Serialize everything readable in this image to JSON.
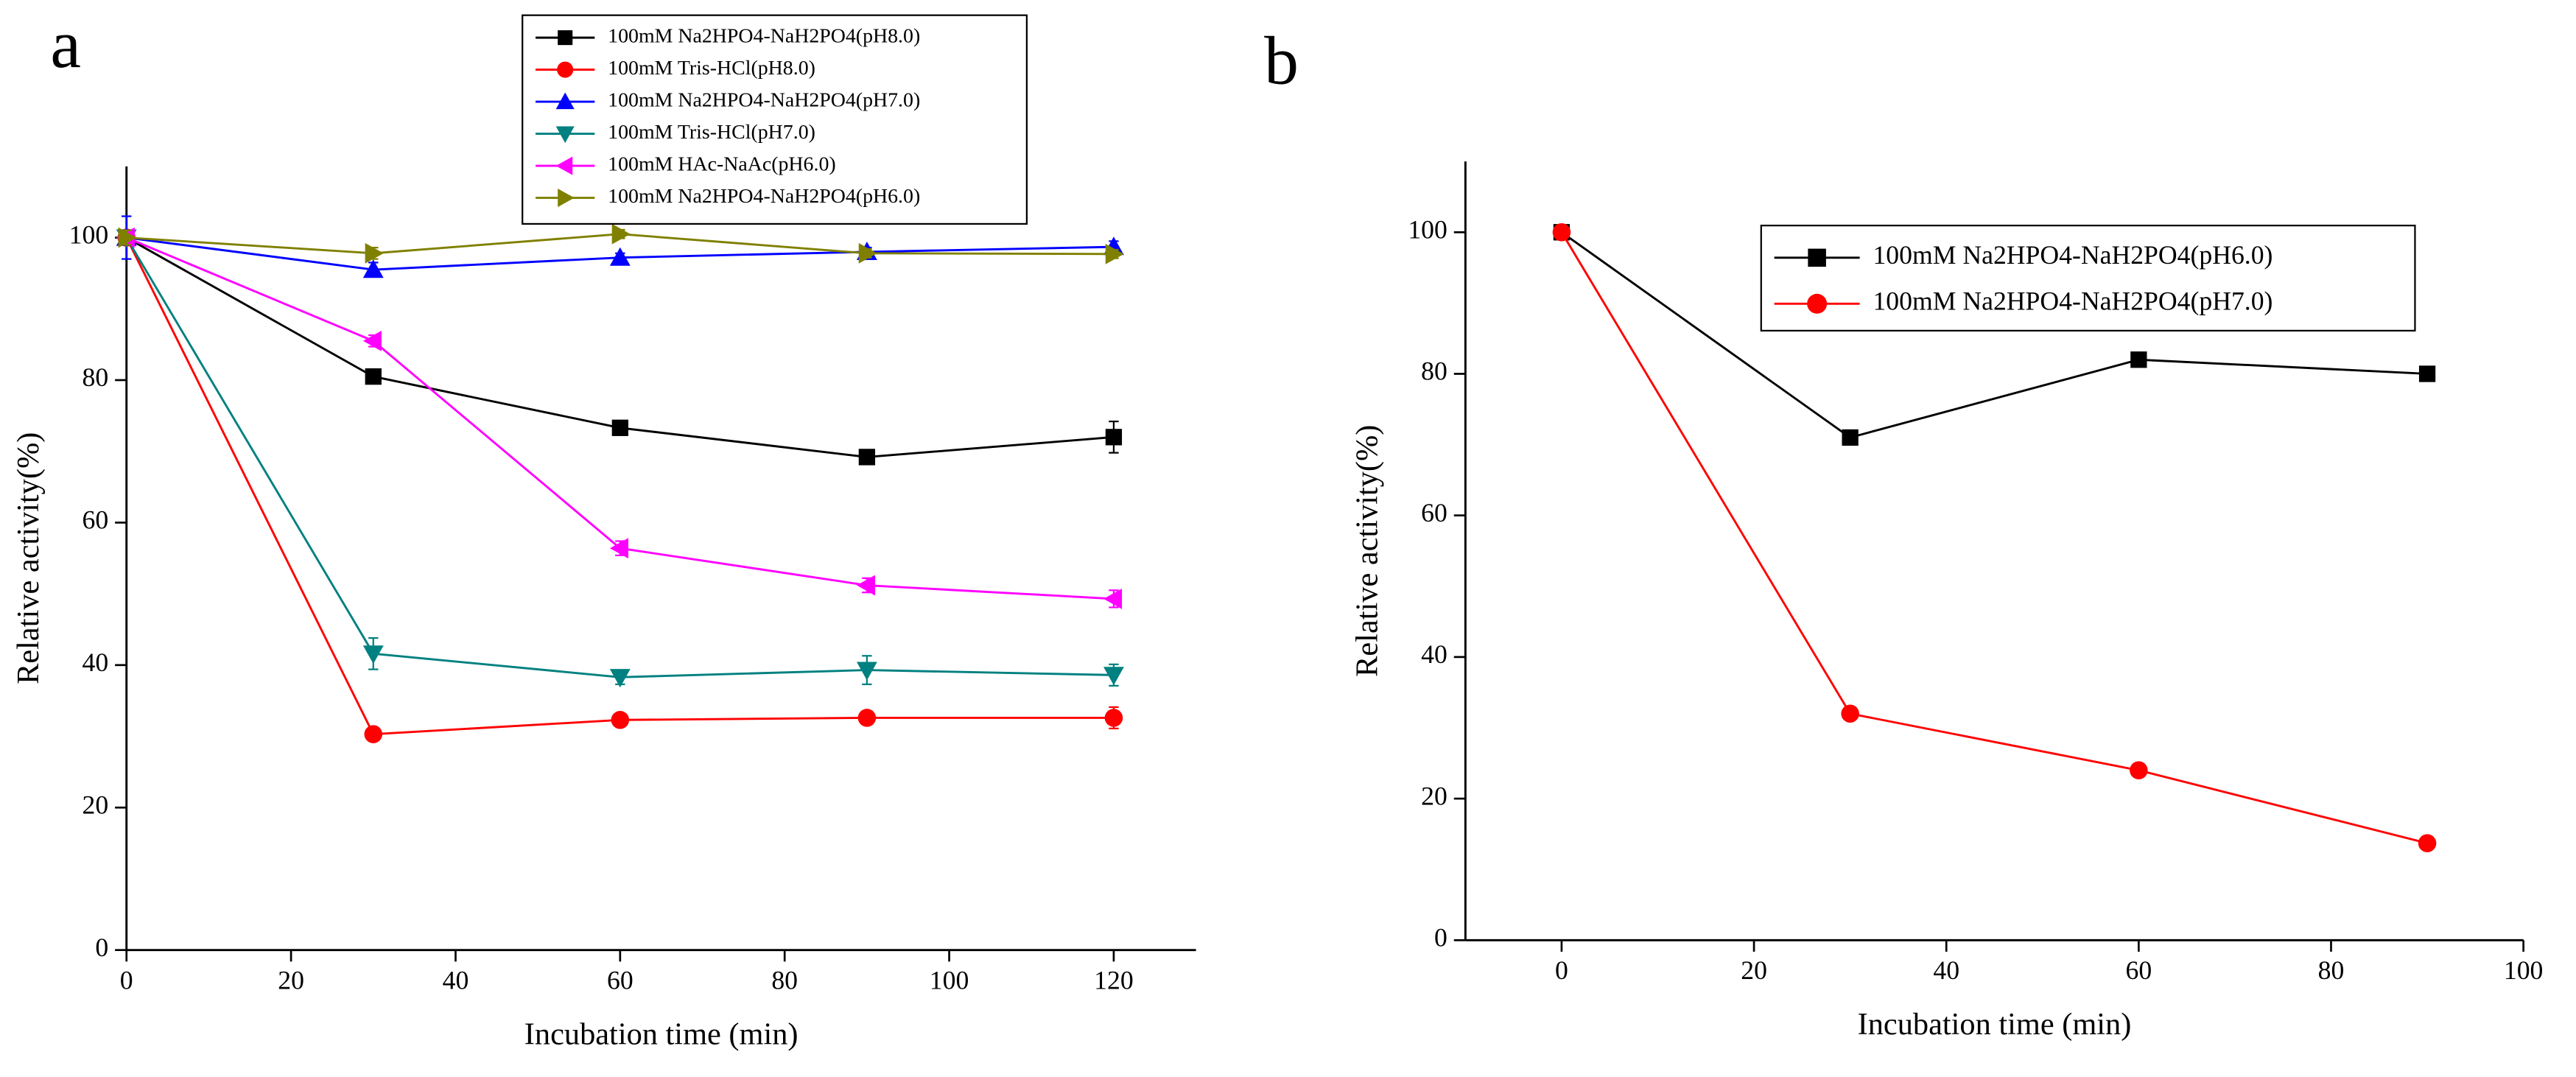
{
  "chart_data": [
    {
      "type": "line",
      "panel_label": "a",
      "x_label": "Incubation time (min)",
      "y_label": "Relative activity(%)",
      "x": [
        0,
        30,
        60,
        90,
        120
      ],
      "xlim": [
        0,
        130
      ],
      "xticks": [
        0,
        20,
        40,
        60,
        80,
        100,
        120
      ],
      "ylim": [
        0,
        110
      ],
      "yticks": [
        0,
        20,
        40,
        60,
        80,
        100
      ],
      "legend": "upper center",
      "series": [
        {
          "name": "100mM Na2HPO4-NaH2PO4(pH8.0)",
          "color": "#000000",
          "marker": "square",
          "values": [
            100,
            80.5,
            73.3,
            69.2,
            72
          ],
          "errors": [
            1,
            0.6,
            0.6,
            0.8,
            2.2
          ]
        },
        {
          "name": "100mM Tris-HCl(pH8.0)",
          "color": "#ff0000",
          "marker": "circle",
          "values": [
            100,
            30.3,
            32.3,
            32.6,
            32.6
          ],
          "errors": [
            1,
            0.5,
            0.6,
            0.6,
            1.5
          ]
        },
        {
          "name": "100mM Na2HPO4-NaH2PO4(pH7.0)",
          "color": "#0000ff",
          "marker": "triangle-up",
          "values": [
            100,
            95.5,
            97.2,
            98,
            98.7
          ],
          "errors": [
            3,
            1,
            0.6,
            0.6,
            0.8
          ]
        },
        {
          "name": "100mM Tris-HCl(pH7.0)",
          "color": "#008080",
          "marker": "triangle-down",
          "values": [
            100,
            41.6,
            38.3,
            39.3,
            38.6
          ],
          "errors": [
            1,
            2.2,
            1,
            2,
            1.5
          ]
        },
        {
          "name": "100mM HAc-NaAc(pH6.0)",
          "color": "#ff00ff",
          "marker": "triangle-left",
          "values": [
            100,
            85.5,
            56.4,
            51.2,
            49.3
          ],
          "errors": [
            1,
            0.8,
            1,
            1,
            1.2
          ]
        },
        {
          "name": "100mM Na2HPO4-NaH2PO4(pH6.0)",
          "color": "#808000",
          "marker": "triangle-right",
          "values": [
            100,
            97.8,
            100.5,
            97.8,
            97.7
          ],
          "errors": [
            1,
            0.8,
            0.6,
            0.6,
            0.6
          ]
        }
      ]
    },
    {
      "type": "line",
      "panel_label": "b",
      "x_label": "Incubation time (min)",
      "y_label": "Relative activity(%)",
      "x": [
        0,
        30,
        60,
        90
      ],
      "xlim": [
        -10,
        100
      ],
      "xticks": [
        0,
        20,
        40,
        60,
        80,
        100
      ],
      "ylim": [
        0,
        110
      ],
      "yticks": [
        0,
        20,
        40,
        60,
        80,
        100
      ],
      "legend": "upper right",
      "series": [
        {
          "name": "100mM Na2HPO4-NaH2PO4(pH6.0)",
          "color": "#000000",
          "marker": "square",
          "values": [
            100,
            71,
            82,
            80
          ]
        },
        {
          "name": "100mM Na2HPO4-NaH2PO4(pH7.0)",
          "color": "#ff0000",
          "marker": "circle",
          "values": [
            100,
            32,
            24,
            13.7
          ]
        }
      ]
    }
  ]
}
